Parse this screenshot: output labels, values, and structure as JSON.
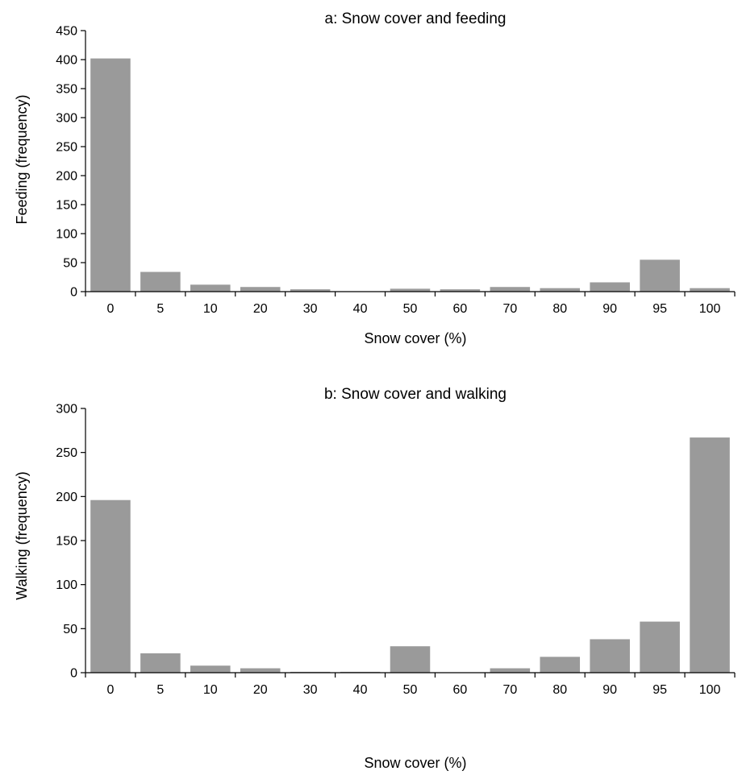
{
  "chart_data": [
    {
      "type": "bar",
      "title": "a: Snow cover and feeding",
      "xlabel": "Snow cover (%)",
      "ylabel": "Feeding (frequency)",
      "categories": [
        "0",
        "5",
        "10",
        "20",
        "30",
        "40",
        "50",
        "60",
        "70",
        "80",
        "90",
        "95",
        "100"
      ],
      "values": [
        402,
        34,
        12,
        8,
        4,
        0,
        5,
        4,
        8,
        6,
        16,
        55,
        6
      ],
      "ylim": [
        0,
        450
      ],
      "yticks": [
        0,
        50,
        100,
        150,
        200,
        250,
        300,
        350,
        400,
        450
      ],
      "bar_color": "#9a9a9a",
      "grid": false,
      "legend": "none"
    },
    {
      "type": "bar",
      "title": "b: Snow cover and walking",
      "xlabel": "Snow cover (%)",
      "ylabel": "Walking (frequency)",
      "categories": [
        "0",
        "5",
        "10",
        "20",
        "30",
        "40",
        "50",
        "60",
        "70",
        "80",
        "90",
        "95",
        "100"
      ],
      "values": [
        196,
        22,
        8,
        5,
        1,
        1,
        30,
        0,
        5,
        18,
        38,
        58,
        267
      ],
      "ylim": [
        0,
        300
      ],
      "yticks": [
        0,
        50,
        100,
        150,
        200,
        250,
        300
      ],
      "bar_color": "#9a9a9a",
      "grid": false,
      "legend": "none"
    }
  ]
}
